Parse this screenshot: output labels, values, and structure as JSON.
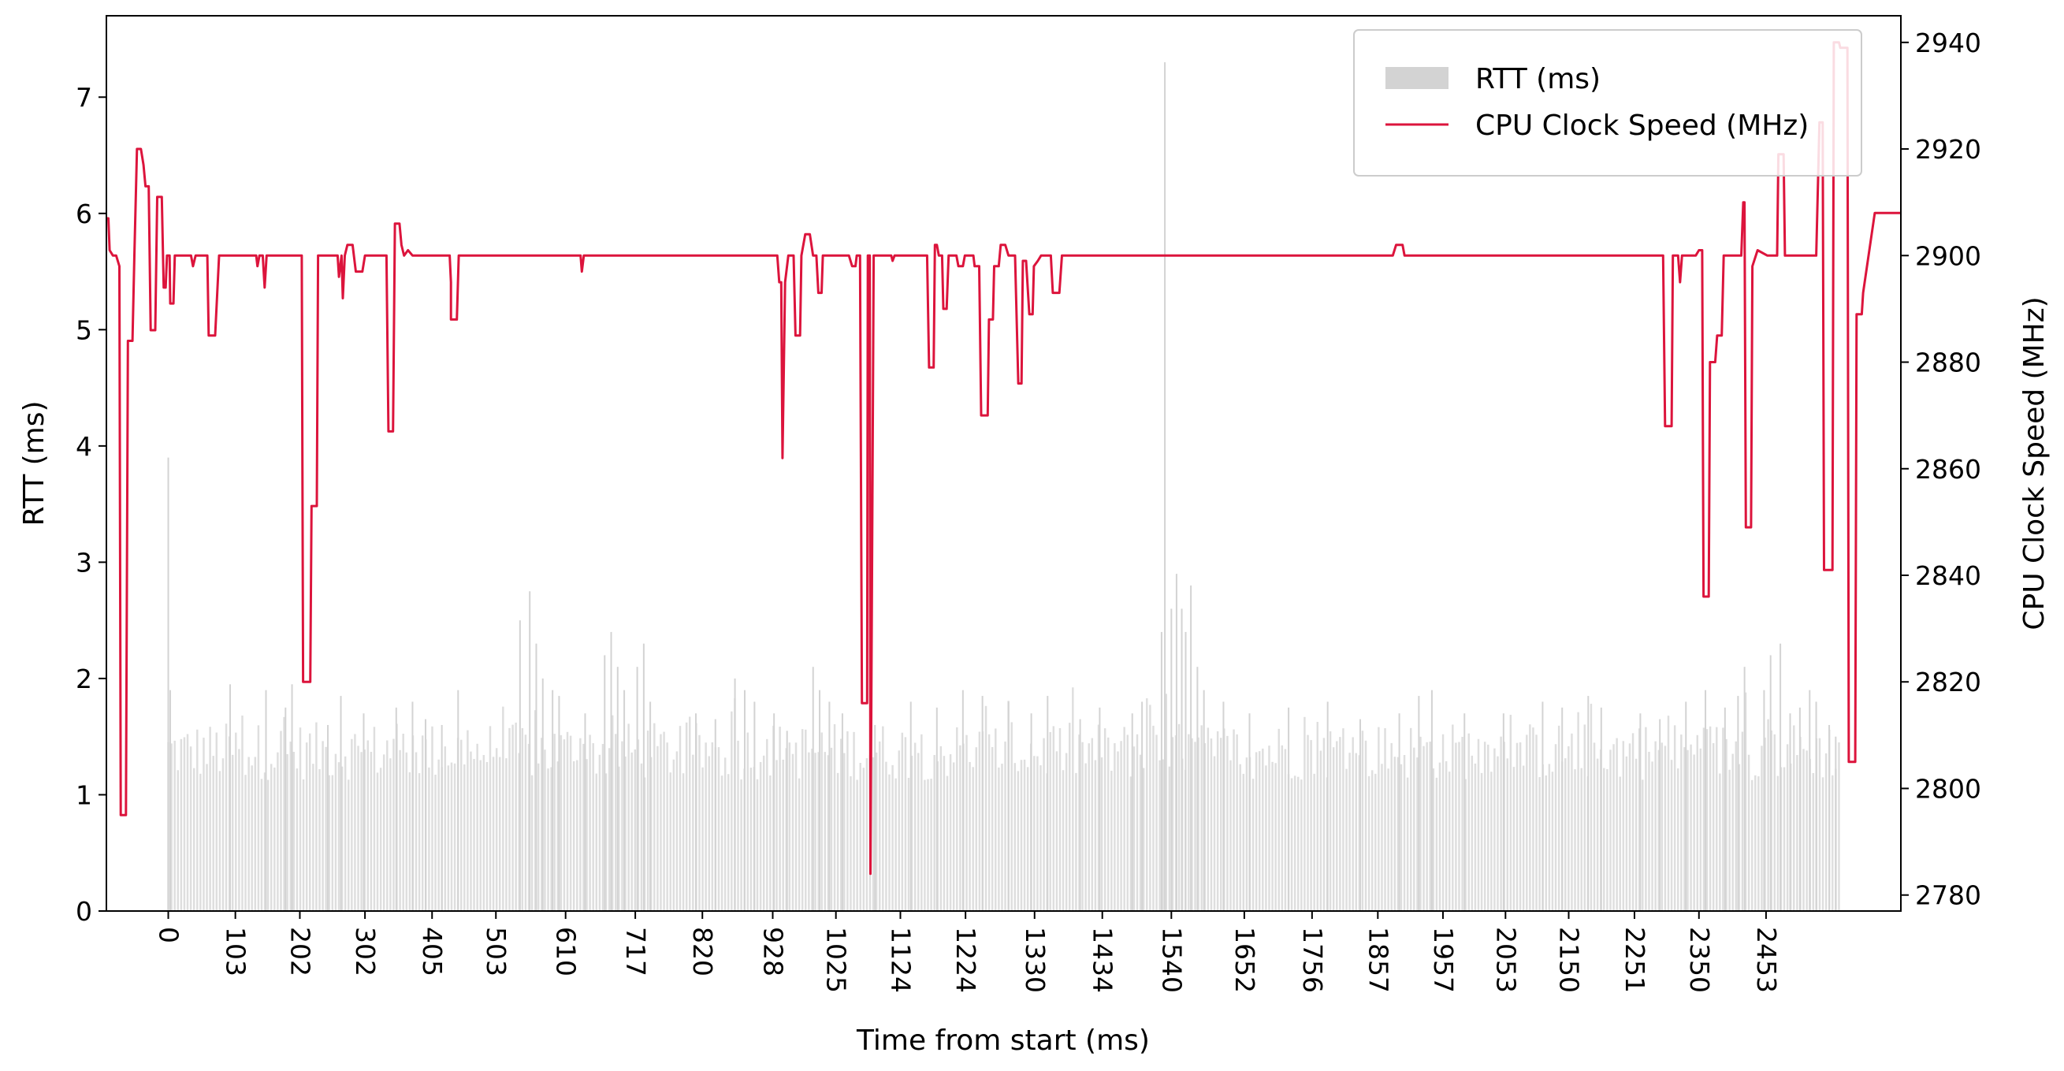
{
  "chart_data": {
    "type": "bar+line",
    "xlabel": "Time from start (ms)",
    "ylabel_left": "RTT (ms)",
    "ylabel_right": "CPU Clock Speed (MHz)",
    "x_tick_labels": [
      "0",
      "103",
      "202",
      "302",
      "405",
      "503",
      "610",
      "717",
      "820",
      "928",
      "1025",
      "1124",
      "1224",
      "1330",
      "1434",
      "1540",
      "1652",
      "1756",
      "1857",
      "1957",
      "2053",
      "2150",
      "2251",
      "2350",
      "2453"
    ],
    "x_tick_positions_ms": [
      0,
      103,
      202,
      302,
      405,
      503,
      610,
      717,
      820,
      928,
      1025,
      1124,
      1224,
      1330,
      1434,
      1540,
      1652,
      1756,
      1857,
      1957,
      2053,
      2150,
      2251,
      2350,
      2453
    ],
    "x_range_ms": [
      -95,
      2660
    ],
    "y_left_range": [
      0,
      7.7
    ],
    "y_left_ticks": [
      0,
      1,
      2,
      3,
      4,
      5,
      6,
      7
    ],
    "y_right_range": [
      2777,
      2945
    ],
    "y_right_ticks": [
      2780,
      2800,
      2820,
      2840,
      2860,
      2880,
      2900,
      2920,
      2940
    ],
    "legend": {
      "placement": "upper-right",
      "entries": [
        {
          "label": "RTT (ms)",
          "color": "#d3d3d3",
          "kind": "patch"
        },
        {
          "label": "CPU Clock Speed (MHz)",
          "color": "#dc143c",
          "kind": "line"
        }
      ]
    },
    "series": [
      {
        "name": "RTT (ms)",
        "axis": "left",
        "color": "#d3d3d3",
        "kind": "bar",
        "x_range_ms": [
          0,
          2565
        ],
        "baseline_ms": 1.35,
        "baseline_sample_count": 520,
        "peaks": [
          [
            0,
            3.9
          ],
          [
            3,
            1.9
          ],
          [
            95,
            1.95
          ],
          [
            150,
            1.9
          ],
          [
            180,
            1.75
          ],
          [
            190,
            1.95
          ],
          [
            245,
            1.6
          ],
          [
            265,
            1.85
          ],
          [
            300,
            1.7
          ],
          [
            350,
            1.75
          ],
          [
            375,
            1.8
          ],
          [
            395,
            1.65
          ],
          [
            420,
            1.6
          ],
          [
            445,
            1.9
          ],
          [
            540,
            2.5
          ],
          [
            555,
            2.75
          ],
          [
            565,
            2.3
          ],
          [
            575,
            2.0
          ],
          [
            590,
            1.9
          ],
          [
            600,
            1.85
          ],
          [
            640,
            1.7
          ],
          [
            670,
            2.2
          ],
          [
            680,
            2.4
          ],
          [
            690,
            2.1
          ],
          [
            700,
            1.9
          ],
          [
            720,
            2.1
          ],
          [
            730,
            2.3
          ],
          [
            740,
            1.8
          ],
          [
            810,
            1.7
          ],
          [
            840,
            1.65
          ],
          [
            870,
            2.0
          ],
          [
            885,
            1.9
          ],
          [
            900,
            1.8
          ],
          [
            930,
            1.7
          ],
          [
            950,
            1.55
          ],
          [
            990,
            2.1
          ],
          [
            1000,
            1.9
          ],
          [
            1015,
            1.8
          ],
          [
            1035,
            1.7
          ],
          [
            1085,
            1.6
          ],
          [
            1140,
            1.8
          ],
          [
            1180,
            1.75
          ],
          [
            1220,
            1.9
          ],
          [
            1250,
            1.85
          ],
          [
            1290,
            1.8
          ],
          [
            1325,
            1.7
          ],
          [
            1350,
            1.85
          ],
          [
            1400,
            1.65
          ],
          [
            1430,
            1.75
          ],
          [
            1480,
            1.7
          ],
          [
            1495,
            1.8
          ],
          [
            1525,
            2.4
          ],
          [
            1530,
            7.3
          ],
          [
            1540,
            2.6
          ],
          [
            1548,
            2.9
          ],
          [
            1556,
            2.6
          ],
          [
            1562,
            2.4
          ],
          [
            1570,
            2.8
          ],
          [
            1580,
            2.1
          ],
          [
            1590,
            1.9
          ],
          [
            1620,
            1.8
          ],
          [
            1660,
            1.7
          ],
          [
            1720,
            1.75
          ],
          [
            1780,
            1.8
          ],
          [
            1830,
            1.65
          ],
          [
            1890,
            1.7
          ],
          [
            1920,
            1.85
          ],
          [
            1940,
            1.9
          ],
          [
            1990,
            1.7
          ],
          [
            2050,
            1.7
          ],
          [
            2110,
            1.8
          ],
          [
            2140,
            1.75
          ],
          [
            2180,
            1.85
          ],
          [
            2200,
            1.75
          ],
          [
            2260,
            1.7
          ],
          [
            2290,
            1.65
          ],
          [
            2330,
            1.8
          ],
          [
            2360,
            1.9
          ],
          [
            2390,
            1.75
          ],
          [
            2410,
            1.85
          ],
          [
            2420,
            2.1
          ],
          [
            2450,
            1.9
          ],
          [
            2460,
            2.2
          ],
          [
            2475,
            2.3
          ],
          [
            2490,
            1.7
          ],
          [
            2505,
            1.75
          ],
          [
            2520,
            1.9
          ],
          [
            2530,
            1.8
          ],
          [
            2550,
            1.6
          ],
          [
            2560,
            1.5
          ]
        ]
      },
      {
        "name": "CPU Clock Speed (MHz)",
        "axis": "right",
        "color": "#dc143c",
        "kind": "line",
        "points": [
          [
            -95,
            2907
          ],
          [
            -92,
            2907
          ],
          [
            -90,
            2901
          ],
          [
            -85,
            2900
          ],
          [
            -80,
            2900
          ],
          [
            -75,
            2898
          ],
          [
            -73,
            2795
          ],
          [
            -65,
            2795
          ],
          [
            -62,
            2884
          ],
          [
            -55,
            2884
          ],
          [
            -52,
            2900
          ],
          [
            -48,
            2920
          ],
          [
            -42,
            2920
          ],
          [
            -38,
            2917
          ],
          [
            -35,
            2913
          ],
          [
            -30,
            2913
          ],
          [
            -27,
            2886
          ],
          [
            -20,
            2886
          ],
          [
            -17,
            2911
          ],
          [
            -10,
            2911
          ],
          [
            -7,
            2894
          ],
          [
            -4,
            2894
          ],
          [
            -2,
            2900
          ],
          [
            2,
            2900
          ],
          [
            3,
            2891
          ],
          [
            8,
            2891
          ],
          [
            10,
            2900
          ],
          [
            35,
            2900
          ],
          [
            38,
            2898
          ],
          [
            42,
            2900
          ],
          [
            60,
            2900
          ],
          [
            62,
            2885
          ],
          [
            72,
            2885
          ],
          [
            78,
            2900
          ],
          [
            135,
            2900
          ],
          [
            137,
            2898
          ],
          [
            140,
            2900
          ],
          [
            145,
            2900
          ],
          [
            148,
            2894
          ],
          [
            151,
            2900
          ],
          [
            205,
            2900
          ],
          [
            207,
            2820
          ],
          [
            218,
            2820
          ],
          [
            220,
            2853
          ],
          [
            228,
            2853
          ],
          [
            230,
            2900
          ],
          [
            260,
            2900
          ],
          [
            262,
            2896
          ],
          [
            266,
            2900
          ],
          [
            268,
            2892
          ],
          [
            271,
            2900
          ],
          [
            275,
            2902
          ],
          [
            283,
            2902
          ],
          [
            288,
            2897
          ],
          [
            298,
            2897
          ],
          [
            302,
            2900
          ],
          [
            335,
            2900
          ],
          [
            338,
            2867
          ],
          [
            345,
            2867
          ],
          [
            348,
            2906
          ],
          [
            355,
            2906
          ],
          [
            358,
            2902
          ],
          [
            362,
            2900
          ],
          [
            368,
            2901
          ],
          [
            375,
            2900
          ],
          [
            432,
            2900
          ],
          [
            434,
            2895
          ],
          [
            434,
            2888
          ],
          [
            443,
            2888
          ],
          [
            446,
            2900
          ],
          [
            633,
            2900
          ],
          [
            635,
            2897
          ],
          [
            638,
            2900
          ],
          [
            935,
            2900
          ],
          [
            938,
            2895
          ],
          [
            941,
            2895
          ],
          [
            943,
            2862
          ],
          [
            947,
            2895
          ],
          [
            952,
            2900
          ],
          [
            960,
            2900
          ],
          [
            963,
            2885
          ],
          [
            970,
            2885
          ],
          [
            972,
            2900
          ],
          [
            978,
            2904
          ],
          [
            985,
            2904
          ],
          [
            990,
            2900
          ],
          [
            995,
            2900
          ],
          [
            998,
            2893
          ],
          [
            1003,
            2893
          ],
          [
            1005,
            2900
          ],
          [
            1045,
            2900
          ],
          [
            1050,
            2898
          ],
          [
            1055,
            2898
          ],
          [
            1057,
            2900
          ],
          [
            1062,
            2900
          ],
          [
            1065,
            2816
          ],
          [
            1073,
            2816
          ],
          [
            1074,
            2900
          ],
          [
            1077,
            2900
          ],
          [
            1078,
            2784
          ],
          [
            1083,
            2900
          ],
          [
            1100,
            2900
          ],
          [
            1110,
            2900
          ],
          [
            1112,
            2899
          ],
          [
            1115,
            2900
          ],
          [
            1165,
            2900
          ],
          [
            1168,
            2879
          ],
          [
            1175,
            2879
          ],
          [
            1177,
            2902
          ],
          [
            1180,
            2902
          ],
          [
            1183,
            2900
          ],
          [
            1188,
            2900
          ],
          [
            1190,
            2890
          ],
          [
            1195,
            2890
          ],
          [
            1198,
            2900
          ],
          [
            1210,
            2900
          ],
          [
            1213,
            2898
          ],
          [
            1220,
            2898
          ],
          [
            1223,
            2900
          ],
          [
            1236,
            2900
          ],
          [
            1238,
            2898
          ],
          [
            1245,
            2898
          ],
          [
            1248,
            2870
          ],
          [
            1258,
            2870
          ],
          [
            1260,
            2888
          ],
          [
            1266,
            2888
          ],
          [
            1268,
            2898
          ],
          [
            1275,
            2898
          ],
          [
            1278,
            2902
          ],
          [
            1285,
            2902
          ],
          [
            1290,
            2900
          ],
          [
            1300,
            2900
          ],
          [
            1305,
            2876
          ],
          [
            1310,
            2876
          ],
          [
            1312,
            2899
          ],
          [
            1317,
            2899
          ],
          [
            1322,
            2889
          ],
          [
            1327,
            2889
          ],
          [
            1329,
            2898
          ],
          [
            1335,
            2899
          ],
          [
            1340,
            2900
          ],
          [
            1355,
            2900
          ],
          [
            1358,
            2893
          ],
          [
            1368,
            2893
          ],
          [
            1372,
            2900
          ],
          [
            1880,
            2900
          ],
          [
            1885,
            2902
          ],
          [
            1895,
            2902
          ],
          [
            1898,
            2900
          ],
          [
            2295,
            2900
          ],
          [
            2298,
            2868
          ],
          [
            2308,
            2868
          ],
          [
            2310,
            2900
          ],
          [
            2318,
            2900
          ],
          [
            2321,
            2895
          ],
          [
            2324,
            2900
          ],
          [
            2335,
            2900
          ],
          [
            2345,
            2900
          ],
          [
            2350,
            2901
          ],
          [
            2355,
            2901
          ],
          [
            2357,
            2836
          ],
          [
            2365,
            2836
          ],
          [
            2367,
            2880
          ],
          [
            2375,
            2880
          ],
          [
            2378,
            2885
          ],
          [
            2385,
            2885
          ],
          [
            2388,
            2900
          ],
          [
            2415,
            2900
          ],
          [
            2418,
            2910
          ],
          [
            2420,
            2910
          ],
          [
            2422,
            2849
          ],
          [
            2430,
            2849
          ],
          [
            2432,
            2898
          ],
          [
            2440,
            2901
          ],
          [
            2455,
            2900
          ],
          [
            2470,
            2900
          ],
          [
            2472,
            2919
          ],
          [
            2480,
            2919
          ],
          [
            2482,
            2900
          ],
          [
            2530,
            2900
          ],
          [
            2535,
            2925
          ],
          [
            2540,
            2925
          ],
          [
            2542,
            2841
          ],
          [
            2555,
            2841
          ],
          [
            2557,
            2940
          ],
          [
            2565,
            2940
          ],
          [
            2567,
            2939
          ],
          [
            2578,
            2939
          ],
          [
            2580,
            2805
          ],
          [
            2590,
            2805
          ],
          [
            2592,
            2889
          ],
          [
            2600,
            2889
          ],
          [
            2602,
            2893
          ],
          [
            2620,
            2908
          ],
          [
            2660,
            2908
          ]
        ]
      }
    ]
  }
}
